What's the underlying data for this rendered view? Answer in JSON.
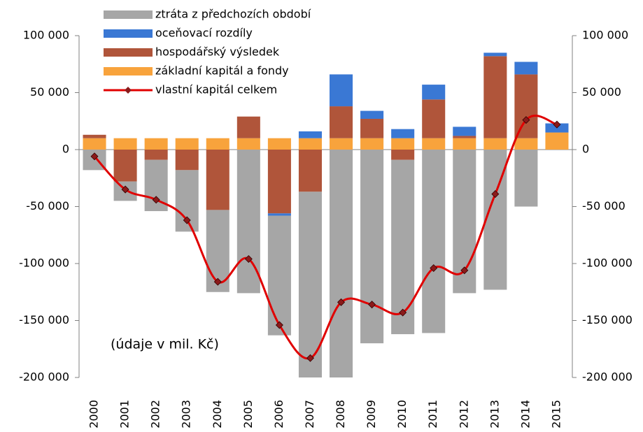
{
  "chart_data": {
    "type": "bar",
    "stacked": true,
    "annotation": "(údaje v mil. Kč)",
    "categories": [
      "2000",
      "2001",
      "2002",
      "2003",
      "2004",
      "2005",
      "2006",
      "2007",
      "2008",
      "2009",
      "2010",
      "2011",
      "2012",
      "2013",
      "2014",
      "2015"
    ],
    "series": [
      {
        "name": "ztráta z předchozích období",
        "color": "#a6a6a6",
        "values": [
          -18000,
          -17000,
          -45000,
          -54000,
          -72000,
          -126000,
          -105000,
          -163000,
          -200000,
          -170000,
          -153000,
          -161000,
          -126000,
          -123000,
          -50000,
          0
        ]
      },
      {
        "name": "oceňovací rozdíly",
        "color": "#3a78d4",
        "values": [
          0,
          0,
          0,
          0,
          0,
          0,
          -2000,
          6000,
          28000,
          7000,
          8000,
          13000,
          8000,
          3000,
          11000,
          8000
        ]
      },
      {
        "name": "hospodářský výsledek",
        "color": "#b0553a",
        "values": [
          3000,
          -28000,
          -9000,
          -18000,
          -53000,
          19000,
          -56000,
          -37000,
          28000,
          17000,
          -9000,
          34000,
          2000,
          72000,
          56000,
          0
        ]
      },
      {
        "name": "základní kapitál a fondy",
        "color": "#f8a33c",
        "values": [
          10000,
          10000,
          10000,
          10000,
          10000,
          10000,
          10000,
          10000,
          10000,
          10000,
          10000,
          10000,
          10000,
          10000,
          10000,
          15000
        ]
      },
      {
        "name": "vlastní kapitál celkem",
        "type": "line",
        "color": "#e00000",
        "marker_color": "#8b1a1a",
        "values": [
          -6000,
          -35000,
          -44000,
          -62000,
          -116000,
          -96000,
          -154000,
          -183000,
          -134000,
          -136000,
          -143000,
          -104000,
          -106000,
          -39000,
          26000,
          22000
        ]
      }
    ],
    "ylim": [
      -200000,
      100000
    ],
    "yticks": [
      {
        "value": -200000,
        "label": "-200 000"
      },
      {
        "value": -150000,
        "label": "-150 000"
      },
      {
        "value": -100000,
        "label": "-100 000"
      },
      {
        "value": -50000,
        "label": "-50 000"
      },
      0,
      {
        "value": 50000,
        "label": "50 000"
      },
      {
        "value": 100000,
        "label": "100 000"
      }
    ],
    "y2lim": [
      -200000,
      100000
    ],
    "y2ticks": [
      {
        "value": -200000,
        "label": "-200 000"
      },
      {
        "value": -150000,
        "label": "-150 000"
      },
      {
        "value": -100000,
        "label": "-100 000"
      },
      {
        "value": -50000,
        "label": "-50 000"
      },
      0,
      {
        "value": 50000,
        "label": "50 000"
      },
      {
        "value": 100000,
        "label": "100 000"
      }
    ]
  }
}
